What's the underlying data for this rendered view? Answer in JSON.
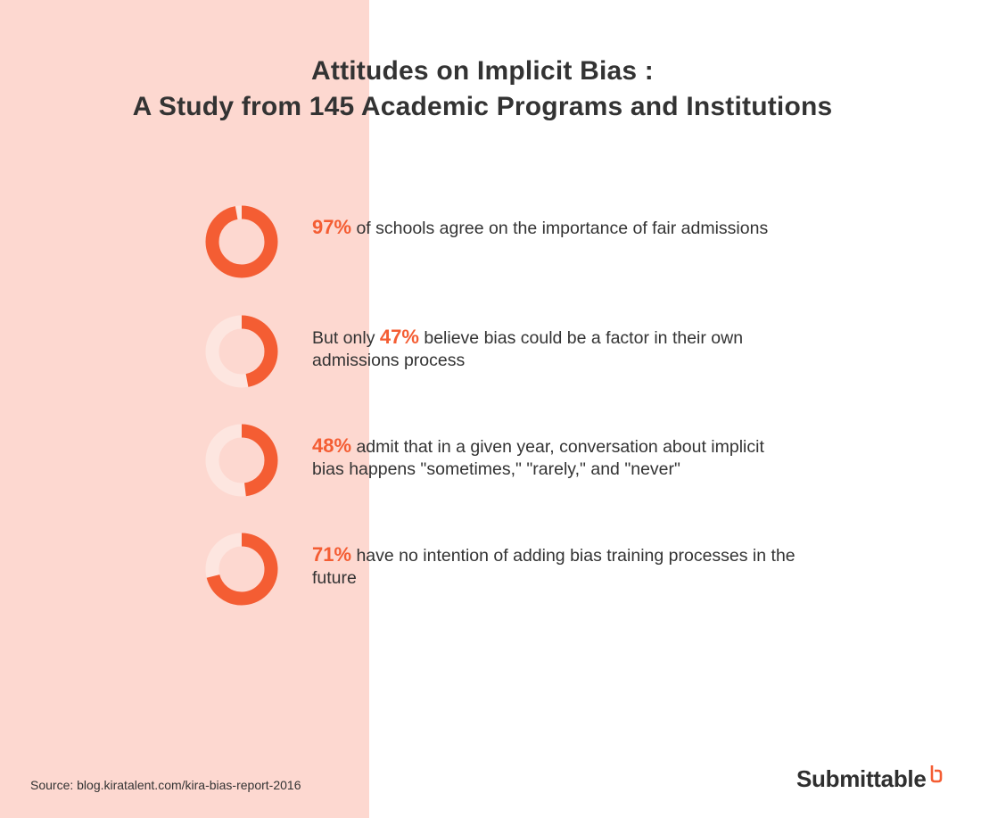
{
  "title": {
    "line1": "Attitudes on Implicit Bias :",
    "line2": "A Study from 145 Academic Programs and Institutions"
  },
  "colors": {
    "accent": "#f45d33",
    "track": "#fde6e0",
    "panel": "#fdd8d0",
    "text": "#333333"
  },
  "chart_data": {
    "type": "donut-list",
    "items": [
      {
        "value": 97,
        "pct_label": "97%",
        "before": "",
        "after": " of schools agree on the importance of fair admissions"
      },
      {
        "value": 47,
        "pct_label": "47%",
        "before": "But only ",
        "after": " believe bias could be a factor in their own admissions process"
      },
      {
        "value": 48,
        "pct_label": "48%",
        "before": "",
        "after": " admit that in a given year, conversation about implicit bias happens \"sometimes,\" \"rarely,\" and \"never\""
      },
      {
        "value": 71,
        "pct_label": "71%",
        "before": "",
        "after": " have no intention of adding bias training processes in the future"
      }
    ]
  },
  "footer": {
    "source": "Source: blog.kiratalent.com/kira-bias-report-2016",
    "logo": "Submittable",
    "logo_icon": "submittable-mark-icon"
  }
}
